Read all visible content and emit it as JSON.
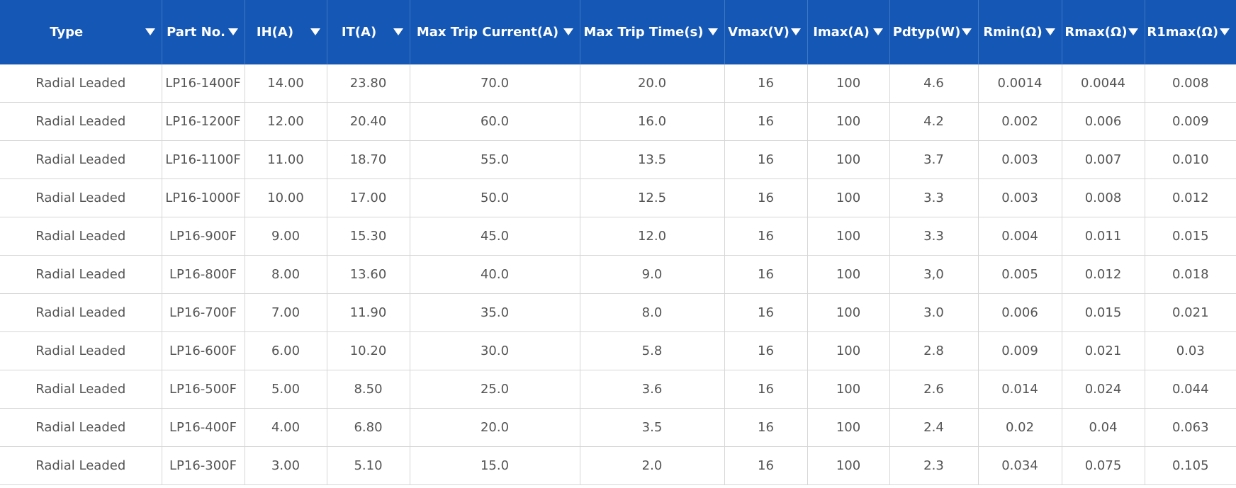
{
  "table": {
    "columns": [
      "Type",
      "Part No.",
      "IH(A)",
      "IT(A)",
      "Max Trip Current(A)",
      "Max Trip Time(s)",
      "Vmax(V)",
      "Imax(A)",
      "Pdtyp(W)",
      "Rmin(Ω)",
      "Rmax(Ω)",
      "R1max(Ω)"
    ],
    "rows": [
      [
        "Radial Leaded",
        "LP16-1400F",
        "14.00",
        "23.80",
        "70.0",
        "20.0",
        "16",
        "100",
        "4.6",
        "0.0014",
        "0.0044",
        "0.008"
      ],
      [
        "Radial Leaded",
        "LP16-1200F",
        "12.00",
        "20.40",
        "60.0",
        "16.0",
        "16",
        "100",
        "4.2",
        "0.002",
        "0.006",
        "0.009"
      ],
      [
        "Radial Leaded",
        "LP16-1100F",
        "11.00",
        "18.70",
        "55.0",
        "13.5",
        "16",
        "100",
        "3.7",
        "0.003",
        "0.007",
        "0.010"
      ],
      [
        "Radial Leaded",
        "LP16-1000F",
        "10.00",
        "17.00",
        "50.0",
        "12.5",
        "16",
        "100",
        "3.3",
        "0.003",
        "0.008",
        "0.012"
      ],
      [
        "Radial Leaded",
        "LP16-900F",
        "9.00",
        "15.30",
        "45.0",
        "12.0",
        "16",
        "100",
        "3.3",
        "0.004",
        "0.011",
        "0.015"
      ],
      [
        "Radial Leaded",
        "LP16-800F",
        "8.00",
        "13.60",
        "40.0",
        "9.0",
        "16",
        "100",
        "3,0",
        "0.005",
        "0.012",
        "0.018"
      ],
      [
        "Radial Leaded",
        "LP16-700F",
        "7.00",
        "11.90",
        "35.0",
        "8.0",
        "16",
        "100",
        "3.0",
        "0.006",
        "0.015",
        "0.021"
      ],
      [
        "Radial Leaded",
        "LP16-600F",
        "6.00",
        "10.20",
        "30.0",
        "5.8",
        "16",
        "100",
        "2.8",
        "0.009",
        "0.021",
        "0.03"
      ],
      [
        "Radial Leaded",
        "LP16-500F",
        "5.00",
        "8.50",
        "25.0",
        "3.6",
        "16",
        "100",
        "2.6",
        "0.014",
        "0.024",
        "0.044"
      ],
      [
        "Radial Leaded",
        "LP16-400F",
        "4.00",
        "6.80",
        "20.0",
        "3.5",
        "16",
        "100",
        "2.4",
        "0.02",
        "0.04",
        "0.063"
      ],
      [
        "Radial Leaded",
        "LP16-300F",
        "3.00",
        "5.10",
        "15.0",
        "2.0",
        "16",
        "100",
        "2.3",
        "0.034",
        "0.075",
        "0.105"
      ]
    ]
  }
}
